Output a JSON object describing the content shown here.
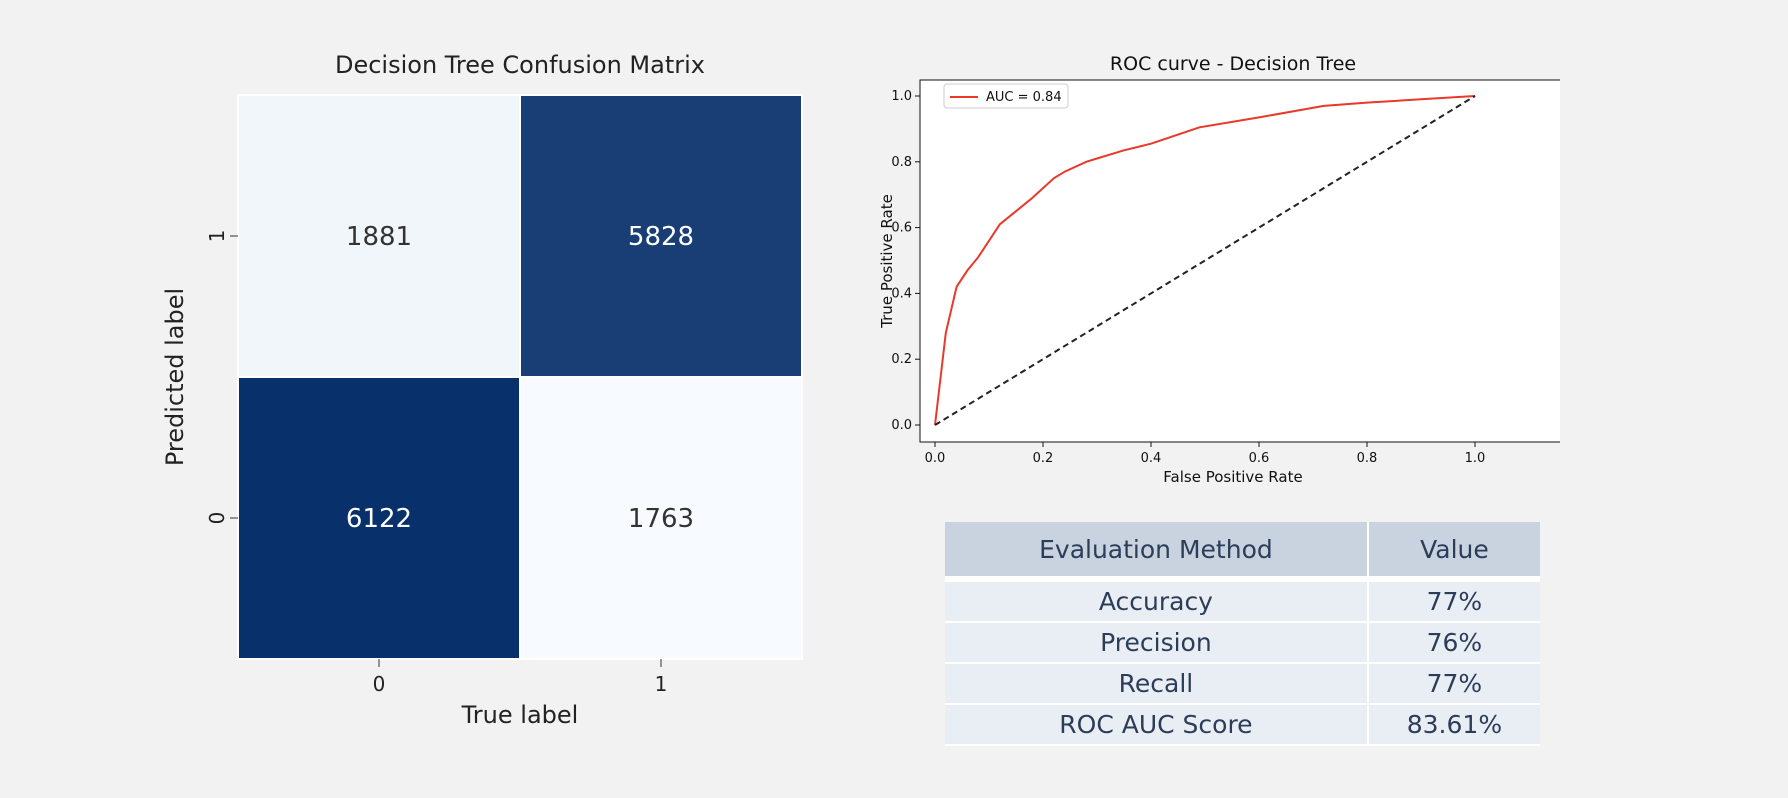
{
  "chart_data": [
    {
      "type": "heatmap",
      "title": "Decision Tree Confusion Matrix",
      "xlabel": "True label",
      "ylabel": "Predicted label",
      "x_tick_labels": [
        "0",
        "1"
      ],
      "y_tick_labels_top_to_bottom": [
        "1",
        "0"
      ],
      "cells": [
        {
          "true": "0",
          "predicted": "1",
          "value": 1881
        },
        {
          "true": "1",
          "predicted": "1",
          "value": 5828
        },
        {
          "true": "0",
          "predicted": "0",
          "value": 6122
        },
        {
          "true": "1",
          "predicted": "0",
          "value": 1763
        }
      ],
      "colormap": {
        "low": "#f7fbff",
        "high": "#08306b"
      },
      "colorbar": false
    },
    {
      "type": "line",
      "title": "ROC curve - Decision Tree",
      "xlabel": "False Positive Rate",
      "ylabel": "True Positive Rate",
      "xlim": [
        0.0,
        1.0
      ],
      "ylim": [
        0.0,
        1.0
      ],
      "x_ticks": [
        "0.0",
        "0.2",
        "0.4",
        "0.6",
        "0.8",
        "1.0"
      ],
      "y_ticks": [
        "0.0",
        "0.2",
        "0.4",
        "0.6",
        "0.8",
        "1.0"
      ],
      "legend_placement": "top-left",
      "grid": false,
      "series": [
        {
          "name": "AUC = 0.84",
          "color": "#e8392a",
          "style": "solid",
          "x": [
            0.0,
            0.02,
            0.04,
            0.06,
            0.08,
            0.1,
            0.12,
            0.15,
            0.18,
            0.22,
            0.24,
            0.28,
            0.3,
            0.35,
            0.4,
            0.49,
            0.6,
            0.72,
            0.8,
            0.9,
            1.0
          ],
          "y": [
            0.0,
            0.28,
            0.42,
            0.47,
            0.51,
            0.56,
            0.61,
            0.65,
            0.69,
            0.75,
            0.77,
            0.8,
            0.81,
            0.835,
            0.855,
            0.905,
            0.935,
            0.97,
            0.98,
            0.99,
            1.0
          ]
        },
        {
          "color": "#222222",
          "style": "dashed",
          "x": [
            0.0,
            1.0
          ],
          "y": [
            0.0,
            1.0
          ]
        }
      ]
    },
    {
      "type": "table",
      "columns": [
        "Evaluation Method",
        "Value"
      ],
      "rows": [
        [
          "Accuracy",
          "77%"
        ],
        [
          "Precision",
          "76%"
        ],
        [
          "Recall",
          "77%"
        ],
        [
          "ROC AUC Score",
          "83.61%"
        ]
      ]
    }
  ]
}
